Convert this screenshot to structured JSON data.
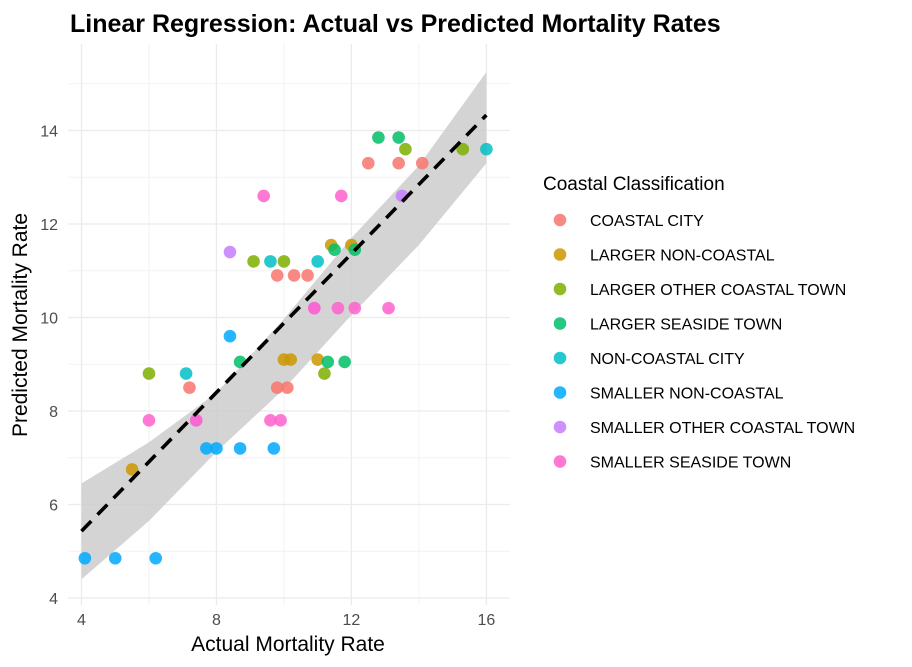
{
  "chart_data": {
    "type": "scatter",
    "title": "Linear Regression: Actual vs Predicted Mortality Rates",
    "xlabel": "Actual Mortality Rate",
    "ylabel": "Predicted Mortality Rate",
    "xlim": [
      3.6,
      16.7
    ],
    "ylim": [
      3.85,
      15.85
    ],
    "xticks": [
      4,
      8,
      12,
      16
    ],
    "yticks": [
      4,
      6,
      8,
      10,
      12,
      14
    ],
    "grid": true,
    "legend": {
      "title": "Coastal Classification",
      "position": "right"
    },
    "regression": {
      "line": {
        "x": [
          4,
          16
        ],
        "y": [
          5.43,
          14.33
        ]
      },
      "ci_band": {
        "x": [
          4,
          6,
          8,
          10,
          12,
          14,
          16
        ],
        "upper": [
          6.45,
          7.33,
          8.39,
          9.97,
          11.7,
          13.25,
          15.25
        ],
        "lower": [
          4.4,
          5.65,
          7.13,
          8.47,
          10.05,
          11.55,
          13.3
        ]
      },
      "style": "dashed",
      "color": "#000000",
      "band_color": "#cccccc"
    },
    "series": [
      {
        "name": "COASTAL CITY",
        "color": "#F8766D",
        "points": [
          [
            7.2,
            8.5
          ],
          [
            9.8,
            10.9
          ],
          [
            10.3,
            10.9
          ],
          [
            10.7,
            10.9
          ],
          [
            9.8,
            8.5
          ],
          [
            10.1,
            8.5
          ],
          [
            12.5,
            13.3
          ],
          [
            13.4,
            13.3
          ],
          [
            14.1,
            13.3
          ]
        ]
      },
      {
        "name": "LARGER NON-COASTAL",
        "color": "#CD9600",
        "points": [
          [
            5.5,
            6.75
          ],
          [
            10.0,
            9.1
          ],
          [
            10.2,
            9.1
          ],
          [
            11.0,
            9.1
          ],
          [
            11.4,
            11.55
          ],
          [
            12.0,
            11.55
          ]
        ]
      },
      {
        "name": "LARGER OTHER COASTAL TOWN",
        "color": "#7CAE00",
        "points": [
          [
            6.0,
            8.8
          ],
          [
            9.1,
            11.2
          ],
          [
            10.0,
            11.2
          ],
          [
            11.2,
            8.8
          ],
          [
            13.6,
            13.6
          ],
          [
            15.3,
            13.6
          ]
        ]
      },
      {
        "name": "LARGER SEASIDE TOWN",
        "color": "#00BE67",
        "points": [
          [
            8.7,
            9.05
          ],
          [
            11.3,
            9.05
          ],
          [
            11.8,
            9.05
          ],
          [
            11.5,
            11.45
          ],
          [
            12.1,
            11.45
          ],
          [
            12.8,
            13.85
          ],
          [
            13.4,
            13.85
          ]
        ]
      },
      {
        "name": "NON-COASTAL CITY",
        "color": "#00BFC4",
        "points": [
          [
            7.1,
            8.8
          ],
          [
            9.6,
            11.2
          ],
          [
            11.0,
            11.2
          ],
          [
            16.0,
            13.6
          ]
        ]
      },
      {
        "name": "SMALLER NON-COASTAL",
        "color": "#00A9FF",
        "points": [
          [
            4.1,
            4.85
          ],
          [
            5.0,
            4.85
          ],
          [
            6.2,
            4.85
          ],
          [
            7.7,
            7.2
          ],
          [
            8.0,
            7.2
          ],
          [
            8.7,
            7.2
          ],
          [
            9.7,
            7.2
          ],
          [
            8.4,
            9.6
          ]
        ]
      },
      {
        "name": "SMALLER OTHER COASTAL TOWN",
        "color": "#C77CFF",
        "points": [
          [
            8.4,
            11.4
          ],
          [
            7.4,
            7.8
          ],
          [
            10.9,
            10.2
          ],
          [
            13.5,
            12.6
          ]
        ]
      },
      {
        "name": "SMALLER SEASIDE TOWN",
        "color": "#FF61CC",
        "points": [
          [
            6.0,
            7.8
          ],
          [
            7.4,
            7.8
          ],
          [
            9.6,
            7.8
          ],
          [
            9.9,
            7.8
          ],
          [
            9.4,
            12.6
          ],
          [
            11.7,
            12.6
          ],
          [
            10.9,
            10.2
          ],
          [
            11.6,
            10.2
          ],
          [
            12.1,
            10.2
          ],
          [
            13.1,
            10.2
          ]
        ]
      }
    ]
  }
}
